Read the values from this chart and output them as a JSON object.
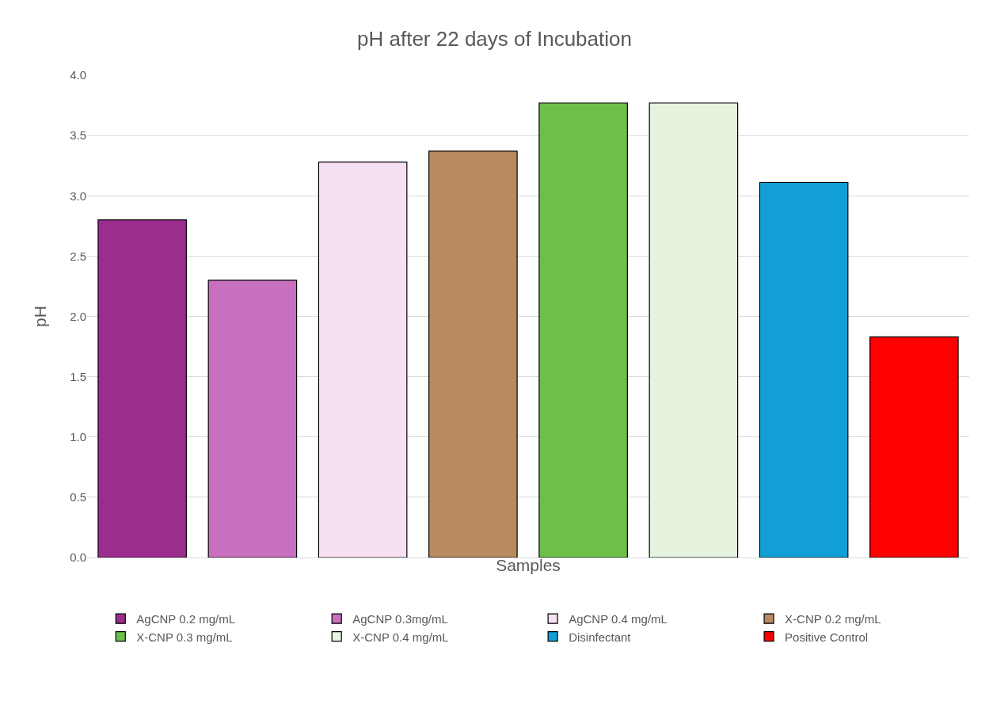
{
  "chart_data": {
    "type": "bar",
    "title": "pH after 22 days of Incubation",
    "xlabel": "Samples",
    "ylabel": "pH",
    "categories": [
      null,
      null,
      null,
      null,
      null,
      null,
      null,
      null
    ],
    "series": [
      {
        "name": "AgCNP 0.2 mg/mL",
        "color": "#9b2d8e",
        "values": [
          2.8,
          null,
          null,
          null,
          null,
          null,
          null,
          null
        ]
      },
      {
        "name": "AgCNP 0.3mg/mL",
        "color": "#c86fc0",
        "values": [
          null,
          2.3,
          null,
          null,
          null,
          null,
          null,
          null
        ]
      },
      {
        "name": "AgCNP 0.4 mg/mL",
        "color": "#f6e1f3",
        "values": [
          null,
          null,
          3.28,
          null,
          null,
          null,
          null,
          null
        ]
      },
      {
        "name": "X-CNP 0.2 mg/mL",
        "color": "#b88a60",
        "values": [
          null,
          null,
          null,
          3.37,
          null,
          null,
          null,
          null
        ]
      },
      {
        "name": "X-CNP 0.3 mg/mL",
        "color": "#6cc04a",
        "values": [
          null,
          null,
          null,
          null,
          3.77,
          null,
          null,
          null
        ]
      },
      {
        "name": "X-CNP 0.4 mg/mL",
        "color": "#e6f4df",
        "values": [
          null,
          null,
          null,
          null,
          null,
          3.77,
          null,
          null
        ]
      },
      {
        "name": "Disinfectant",
        "color": "#119fd6",
        "values": [
          null,
          null,
          null,
          null,
          null,
          null,
          3.11,
          null
        ]
      },
      {
        "name": "Positive Control",
        "color": "#ff0000",
        "values": [
          null,
          null,
          null,
          null,
          null,
          null,
          null,
          1.83
        ]
      }
    ],
    "ylim": [
      0,
      4
    ],
    "yticks": [
      {
        "value": 0,
        "label": "0.0"
      },
      {
        "value": 0.5,
        "label": "0.5"
      },
      {
        "value": 1,
        "label": "1.0"
      },
      {
        "value": 1.5,
        "label": "1.5"
      },
      {
        "value": 2,
        "label": "2.0"
      },
      {
        "value": 2.5,
        "label": "2.5"
      },
      {
        "value": 3,
        "label": "3.0"
      },
      {
        "value": 3.5,
        "label": "3.5"
      },
      {
        "value": 4,
        "label": "4.0"
      }
    ],
    "grid": "y",
    "legend": "bottom",
    "tick_labels": "y"
  }
}
